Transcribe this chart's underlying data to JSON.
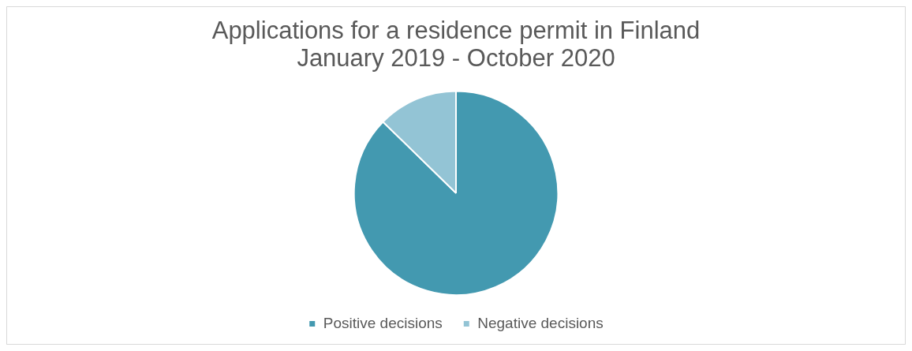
{
  "chart_data": {
    "type": "pie",
    "title": [
      "Applications for a residence permit in Finland",
      "January 2019 - October 2020"
    ],
    "categories": [
      "Positive decisions",
      "Negative decisions"
    ],
    "values": [
      87.3,
      12.7
    ],
    "colors": [
      "#4399b0",
      "#93c4d5"
    ],
    "legend": "bottom"
  }
}
